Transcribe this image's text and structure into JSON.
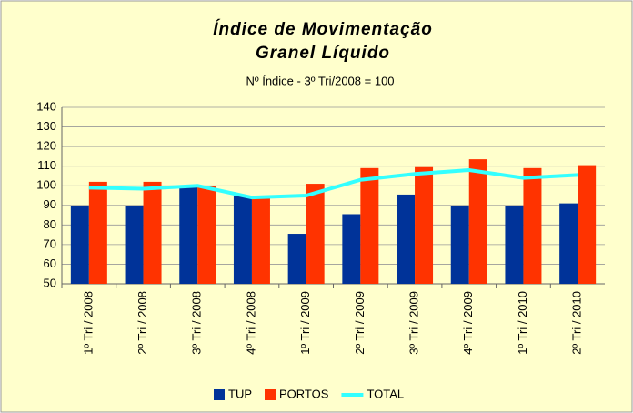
{
  "chart_data": {
    "type": "bar",
    "title": "Índice de Movimentação",
    "title_line2": "Granel Líquido",
    "subtitle": "Nº Índice - 3º Tri/2008 = 100",
    "categories": [
      "1º Tri / 2008",
      "2º Tri / 2008",
      "3º Tri / 2008",
      "4º Tri / 2008",
      "1º Tri / 2009",
      "2º Tri / 2009",
      "3º Tri / 2009",
      "4º Tri / 2009",
      "1º Tri / 2010",
      "2º Tri / 2010"
    ],
    "series": [
      {
        "name": "TUP",
        "type": "bar",
        "color": "#003399",
        "values": [
          89.5,
          89.5,
          100,
          95,
          75.5,
          85.5,
          95.5,
          89.5,
          89.5,
          91
        ]
      },
      {
        "name": "PORTOS",
        "type": "bar",
        "color": "#ff3300",
        "values": [
          102,
          102,
          100,
          94.5,
          101,
          109,
          109.5,
          113.5,
          109,
          110.5
        ]
      },
      {
        "name": "TOTAL",
        "type": "line",
        "color": "#33ffff",
        "values": [
          99,
          98.5,
          100,
          94,
          95,
          103,
          106,
          108,
          104,
          105.5
        ]
      }
    ],
    "ylim": [
      50,
      140
    ],
    "yticks": [
      50,
      60,
      70,
      80,
      90,
      100,
      110,
      120,
      130,
      140
    ],
    "grid": true,
    "legend": "bottom"
  }
}
